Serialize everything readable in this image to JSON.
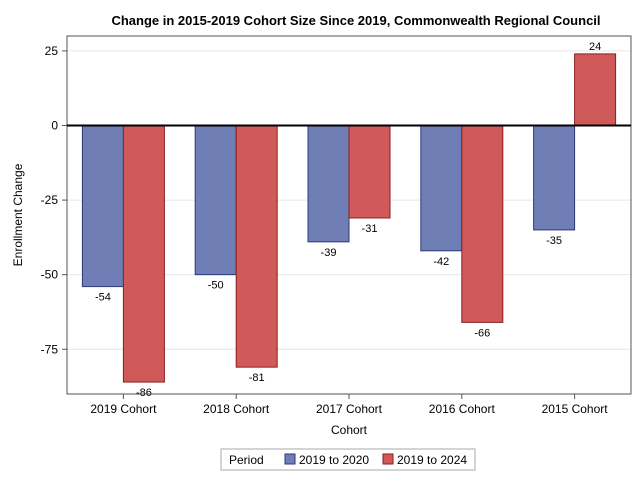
{
  "chart_data": {
    "type": "bar",
    "title": "Change in 2015-2019 Cohort Size Since 2019, Commonwealth Regional Council",
    "xlabel": "Cohort",
    "ylabel": "Enrollment Change",
    "categories": [
      "2019 Cohort",
      "2018 Cohort",
      "2017 Cohort",
      "2016 Cohort",
      "2015 Cohort"
    ],
    "series": [
      {
        "name": "2019 to 2020",
        "values": [
          -54,
          -50,
          -39,
          -42,
          -35
        ],
        "color": "#6f7fb5",
        "stroke": "#2b3a7a"
      },
      {
        "name": "2019 to 2024",
        "values": [
          -86,
          -81,
          -31,
          -66,
          24
        ],
        "color": "#d05a5a",
        "stroke": "#8b1e1e"
      }
    ],
    "ylim": [
      -90,
      30
    ],
    "yticks": [
      25,
      0,
      -25,
      -50,
      -75
    ],
    "grid": true,
    "legend": {
      "title": "Period",
      "position": "bottom"
    }
  }
}
